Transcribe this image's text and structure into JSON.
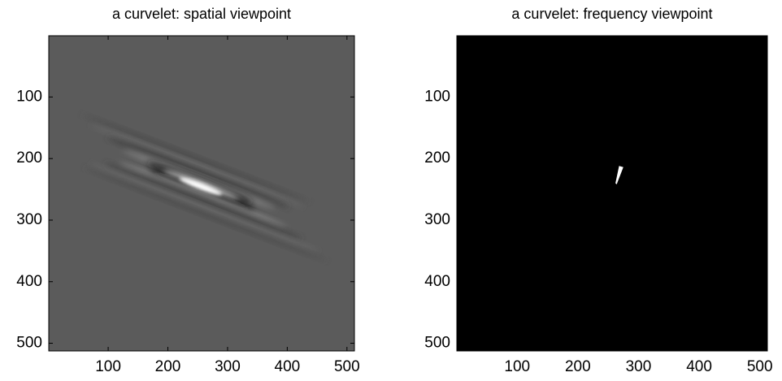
{
  "chart_data": [
    {
      "type": "image",
      "title": "a curvelet: spatial viewpoint",
      "xlim": [
        0.5,
        512.5
      ],
      "ylim": [
        512.5,
        0.5
      ],
      "xticks": [
        100,
        200,
        300,
        400,
        500
      ],
      "yticks": [
        100,
        200,
        300,
        400,
        500
      ],
      "color": "#5b5b5b"
    },
    {
      "type": "image",
      "title": "a curvelet: frequency viewpoint",
      "xlim": [
        0.5,
        512.5
      ],
      "ylim": [
        512.5,
        0.5
      ],
      "xticks": [
        100,
        200,
        300,
        400,
        500
      ],
      "yticks": [
        100,
        200,
        300,
        400,
        500
      ],
      "color": "#000000"
    }
  ]
}
